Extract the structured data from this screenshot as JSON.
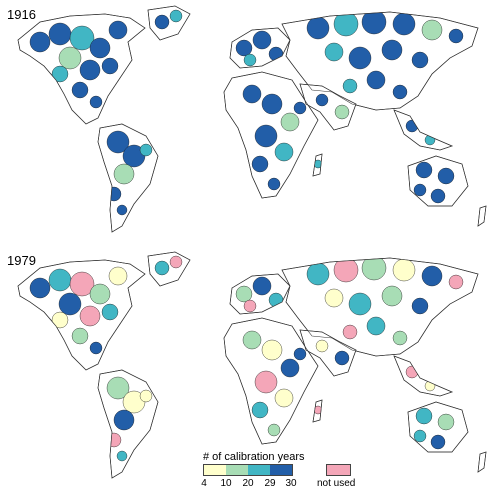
{
  "panels": [
    {
      "year": "1916",
      "bins": [
        "c4",
        "c4",
        "c3",
        "c4",
        "c4",
        "c2",
        "c4",
        "c3",
        "c4",
        "c4"
      ],
      "not_used": false
    },
    {
      "year": "1979",
      "bins": [
        "c4",
        "c3",
        "nu",
        "c2",
        "c1",
        "c4",
        "nu",
        "c1",
        "c3",
        "c2"
      ],
      "not_used": true
    }
  ],
  "legend": {
    "title": "# of calibration years",
    "ticks": [
      "4",
      "10",
      "20",
      "29",
      "30"
    ],
    "not_used_label": "not used",
    "colors": {
      "c1": "#ffffcc",
      "c2": "#a8ddb5",
      "c3": "#41b6c4",
      "c4": "#225ea8",
      "nu": "#f4a6b8"
    },
    "unused_land": "#ffffff",
    "outline": "#333333"
  }
}
